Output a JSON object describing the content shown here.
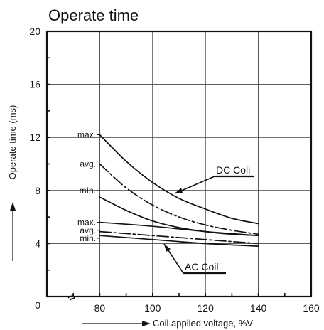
{
  "chart_data": {
    "type": "line",
    "title": "Operate time",
    "xlabel": "Coil applied voltage, %V",
    "ylabel": "Operate time (ms)",
    "xlim": [
      60,
      160
    ],
    "ylim": [
      0,
      20
    ],
    "x_ticks": [
      "80",
      "100",
      "120",
      "140",
      "160"
    ],
    "y_ticks": [
      "0",
      "4",
      "8",
      "12",
      "16",
      "20"
    ],
    "grid": true,
    "series": [
      {
        "name": "DC Coil",
        "stat": "max.",
        "style": "solid",
        "x": [
          80,
          90,
          100,
          110,
          120,
          130,
          140
        ],
        "values": [
          12.2,
          10.2,
          8.6,
          7.4,
          6.6,
          5.9,
          5.5
        ]
      },
      {
        "name": "DC Coil",
        "stat": "avg.",
        "style": "dashdot",
        "x": [
          80,
          90,
          100,
          110,
          120,
          130,
          140
        ],
        "values": [
          10.0,
          8.2,
          6.9,
          6.0,
          5.4,
          5.0,
          4.7
        ]
      },
      {
        "name": "DC Coil",
        "stat": "min.",
        "style": "solid",
        "x": [
          80,
          90,
          100,
          110,
          120,
          130,
          140
        ],
        "values": [
          7.5,
          6.5,
          5.7,
          5.2,
          4.9,
          4.7,
          4.6
        ]
      },
      {
        "name": "AC Coil",
        "stat": "max.",
        "style": "solid",
        "x": [
          80,
          100,
          120,
          140
        ],
        "values": [
          5.6,
          5.3,
          4.9,
          4.6
        ]
      },
      {
        "name": "AC Coil",
        "stat": "avg.",
        "style": "dashdot",
        "x": [
          80,
          100,
          120,
          140
        ],
        "values": [
          4.9,
          4.6,
          4.3,
          4.0
        ]
      },
      {
        "name": "AC Coil",
        "stat": "min.",
        "style": "solid",
        "x": [
          80,
          100,
          120,
          140
        ],
        "values": [
          4.6,
          4.3,
          4.0,
          3.8
        ]
      }
    ],
    "curve_labels": [
      {
        "text": "max.",
        "y": 12.2
      },
      {
        "text": "avg.",
        "y": 10.0
      },
      {
        "text": "mIn.",
        "y": 8.0
      },
      {
        "text": "max.",
        "y": 5.6
      },
      {
        "text": "avg.",
        "y": 5.0
      },
      {
        "text": "min.",
        "y": 4.4
      }
    ],
    "annotations": {
      "dc_label": "DC Coli",
      "ac_label": "AC Coil",
      "axis_break": "≈"
    }
  }
}
